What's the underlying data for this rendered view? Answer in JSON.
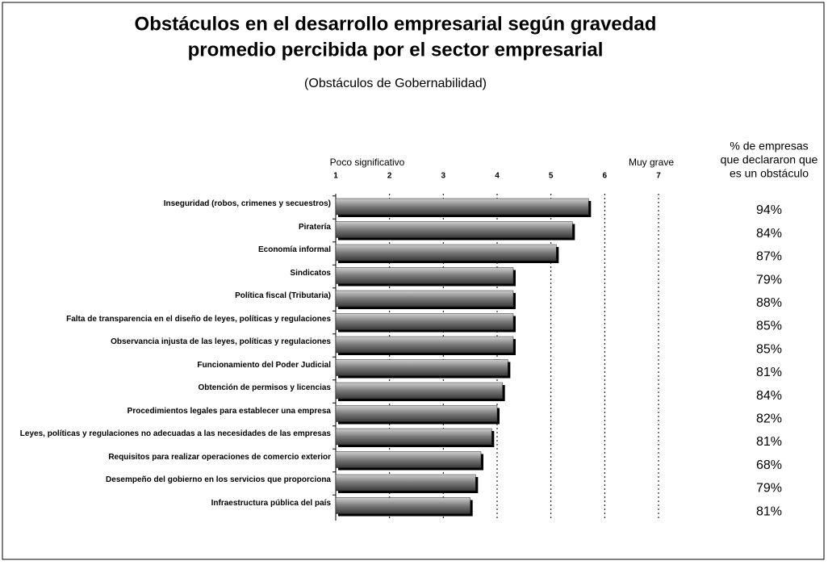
{
  "chart_data": {
    "type": "bar",
    "orientation": "horizontal",
    "title": [
      "Obstáculos en el desarrollo empresarial según gravedad",
      "promedio percibida por el sector empresarial"
    ],
    "subtitle": "(Obstáculos de Gobernabilidad)",
    "annotations": {
      "low": "Poco significativo",
      "high": "Muy grave"
    },
    "categories": [
      "Inseguridad (robos, crimenes y secuestros)",
      "Piratería",
      "Economía informal",
      "Sindicatos",
      "Política fiscal (Tributaria)",
      "Falta de transparencia en el diseño de leyes, políticas y regulaciones",
      "Observancia injusta de las leyes, políticas y regulaciones",
      "Funcionamiento del Poder Judicial",
      "Obtención de permisos y licencias",
      "Procedimientos legales para establecer una empresa",
      "Leyes, políticas y regulaciones no adecuadas a las necesidades de las empresas",
      "Requisitos para realizar operaciones de comercio exterior",
      "Desempeño del gobierno en los servicios que proporciona",
      "Infraestructura pública del país"
    ],
    "values": [
      5.7,
      5.4,
      5.1,
      4.3,
      4.3,
      4.3,
      4.3,
      4.2,
      4.1,
      4.0,
      3.9,
      3.7,
      3.6,
      3.5
    ],
    "xlim": [
      1,
      7
    ],
    "xticks": [
      1,
      2,
      3,
      4,
      5,
      6,
      7
    ],
    "grid": true,
    "side_column": {
      "title": [
        "% de empresas",
        "que declararon que",
        "es un obstáculo"
      ],
      "values": [
        94,
        84,
        87,
        79,
        88,
        85,
        85,
        81,
        84,
        82,
        81,
        68,
        79,
        81
      ],
      "value_labels": [
        "94%",
        "84%",
        "87%",
        "79%",
        "88%",
        "85%",
        "85%",
        "81%",
        "84%",
        "82%",
        "81%",
        "68%",
        "79%",
        "81%"
      ]
    }
  }
}
